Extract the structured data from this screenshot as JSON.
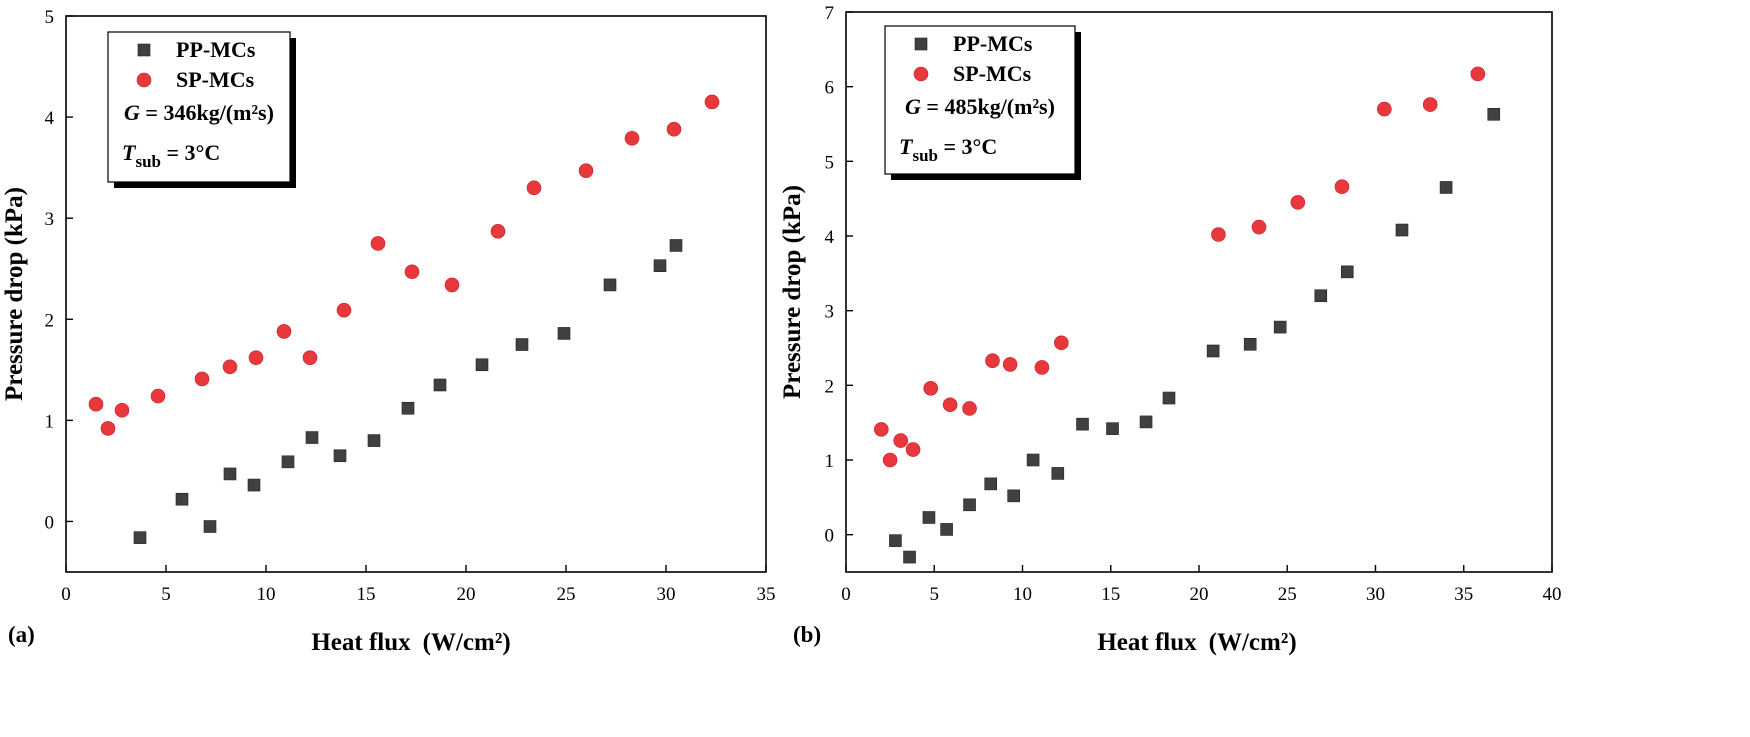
{
  "chart_data": [
    {
      "type": "scatter",
      "panel_label": "(a)",
      "xlabel": "Heat flux",
      "xlabel_unit": "(W/cm²)",
      "ylabel": "Pressure drop (kPa)",
      "xlim": [
        0,
        35
      ],
      "ylim": [
        -0.5,
        5
      ],
      "xticks": [
        0,
        5,
        10,
        15,
        20,
        25,
        30,
        35
      ],
      "yticks": [
        0,
        1,
        2,
        3,
        4,
        5
      ],
      "legend_position": "top-left",
      "annotation_mass_flux": "G = 346kg/(m²s)",
      "annotation_subcooling": "Tsub = 3°C",
      "series": [
        {
          "name": "PP-MCs",
          "marker": "square",
          "color": "#404040",
          "x": [
            3.7,
            5.8,
            7.2,
            8.2,
            9.4,
            11.1,
            12.3,
            13.7,
            15.4,
            17.1,
            18.7,
            20.8,
            22.8,
            24.9,
            27.2,
            29.7,
            30.5
          ],
          "y": [
            -0.16,
            0.22,
            -0.05,
            0.47,
            0.36,
            0.59,
            0.83,
            0.65,
            0.8,
            1.12,
            1.35,
            1.55,
            1.75,
            1.86,
            2.34,
            2.53,
            2.73
          ]
        },
        {
          "name": "SP-MCs",
          "marker": "circle",
          "color": "#e8383c",
          "x": [
            1.5,
            2.1,
            2.8,
            4.6,
            6.8,
            8.2,
            9.5,
            10.9,
            12.2,
            13.9,
            15.6,
            17.3,
            19.3,
            21.6,
            23.4,
            26.0,
            28.3,
            30.4,
            32.3
          ],
          "y": [
            1.16,
            0.92,
            1.1,
            1.24,
            1.41,
            1.53,
            1.62,
            1.88,
            1.62,
            2.09,
            2.75,
            2.47,
            2.34,
            2.87,
            3.3,
            3.47,
            3.79,
            3.88,
            4.15
          ]
        }
      ]
    },
    {
      "type": "scatter",
      "panel_label": "(b)",
      "xlabel": "Heat flux",
      "xlabel_unit": "(W/cm²)",
      "ylabel": "Pressure drop (kPa)",
      "xlim": [
        0,
        40
      ],
      "ylim": [
        -0.5,
        7
      ],
      "xticks": [
        0,
        5,
        10,
        15,
        20,
        25,
        30,
        35,
        40
      ],
      "yticks": [
        0,
        1,
        2,
        3,
        4,
        5,
        6,
        7
      ],
      "legend_position": "top-left",
      "annotation_mass_flux": "G = 485kg/(m²s)",
      "annotation_subcooling": "Tsub = 3°C",
      "series": [
        {
          "name": "PP-MCs",
          "marker": "square",
          "color": "#404040",
          "x": [
            2.8,
            3.6,
            4.7,
            5.7,
            7.0,
            8.2,
            9.5,
            10.6,
            12.0,
            13.4,
            15.1,
            17.0,
            18.3,
            20.8,
            22.9,
            24.6,
            26.9,
            28.4,
            31.5,
            34.0,
            36.7
          ],
          "y": [
            -0.08,
            -0.3,
            0.23,
            0.07,
            0.4,
            0.68,
            0.52,
            1.0,
            0.82,
            1.48,
            1.42,
            1.51,
            1.83,
            2.46,
            2.55,
            2.78,
            3.2,
            3.52,
            4.08,
            4.65,
            5.63
          ]
        },
        {
          "name": "SP-MCs",
          "marker": "circle",
          "color": "#e8383c",
          "x": [
            2.0,
            2.5,
            3.1,
            3.8,
            4.8,
            5.9,
            7.0,
            8.3,
            9.3,
            11.1,
            12.2,
            21.1,
            23.4,
            25.6,
            28.1,
            30.5,
            33.1,
            35.8
          ],
          "y": [
            1.41,
            1.0,
            1.26,
            1.14,
            1.96,
            1.74,
            1.69,
            2.33,
            2.28,
            2.24,
            2.57,
            4.02,
            4.12,
            4.45,
            4.66,
            5.7,
            5.76,
            6.17
          ]
        }
      ]
    }
  ]
}
